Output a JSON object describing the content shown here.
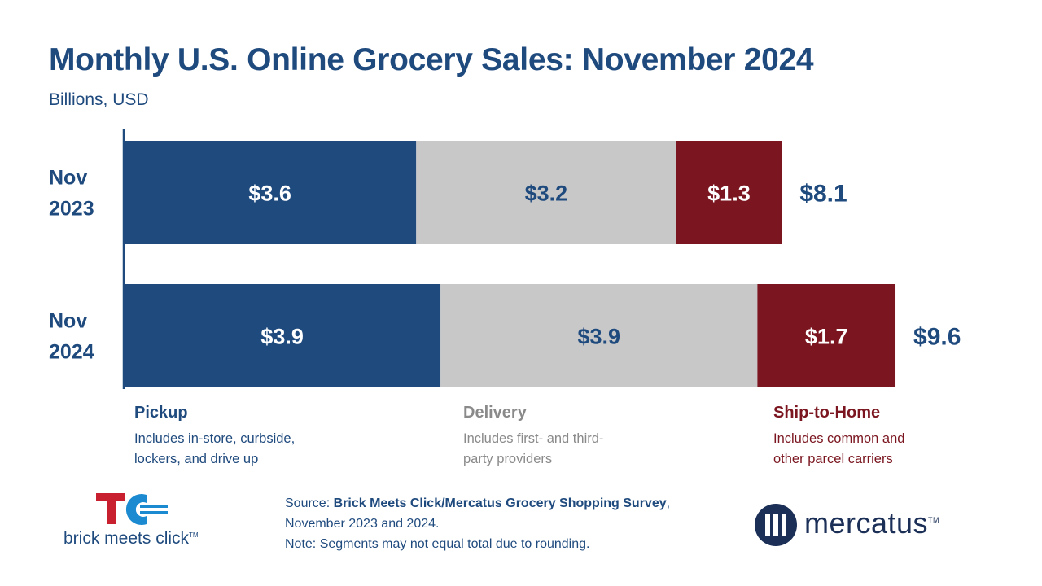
{
  "title": "Monthly U.S. Online Grocery Sales: November 2024",
  "subtitle": "Billions, USD",
  "colors": {
    "pickup": "#1f4a7e",
    "delivery": "#c8c8c8",
    "ship": "#7b1620",
    "title": "#1f4a7e"
  },
  "chart_data": {
    "type": "bar",
    "orientation": "horizontal",
    "stacked": true,
    "title": "Monthly U.S. Online Grocery Sales: November 2024",
    "subtitle": "Billions, USD",
    "categories": [
      "Nov 2023",
      "Nov 2024"
    ],
    "category_lines": [
      [
        "Nov",
        "2023"
      ],
      [
        "Nov",
        "2024"
      ]
    ],
    "series": [
      {
        "name": "Pickup",
        "values": [
          3.6,
          3.9
        ],
        "labels": [
          "$3.6",
          "$3.9"
        ]
      },
      {
        "name": "Delivery",
        "values": [
          3.2,
          3.9
        ],
        "labels": [
          "$3.2",
          "$3.9"
        ]
      },
      {
        "name": "Ship-to-Home",
        "values": [
          1.3,
          1.7
        ],
        "labels": [
          "$1.3",
          "$1.7"
        ]
      }
    ],
    "totals": [
      8.1,
      9.6
    ],
    "total_labels": [
      "$8.1",
      "$9.6"
    ],
    "xlim": [
      0,
      9.6
    ],
    "grid": false,
    "legend_position": "bottom"
  },
  "legend": [
    {
      "title": "Pickup",
      "desc_lines": [
        "Includes in-store, curbside,",
        "lockers, and drive up"
      ]
    },
    {
      "title": "Delivery",
      "desc_lines": [
        "Includes first- and third-",
        "party providers"
      ]
    },
    {
      "title": "Ship-to-Home",
      "desc_lines": [
        "Includes common and",
        "other parcel carriers"
      ]
    }
  ],
  "source": {
    "prefix": "Source: ",
    "name": "Brick Meets Click/Mercatus Grocery Shopping Survey",
    "suffix": ",",
    "line2": "November 2023 and 2024.",
    "note": "Note: Segments may not equal total due to rounding."
  },
  "logos": {
    "brick_meets_click": "brick meets click",
    "brick_meets_click_tm": "TM",
    "mercatus": "mercatus",
    "mercatus_tm": "TM"
  }
}
